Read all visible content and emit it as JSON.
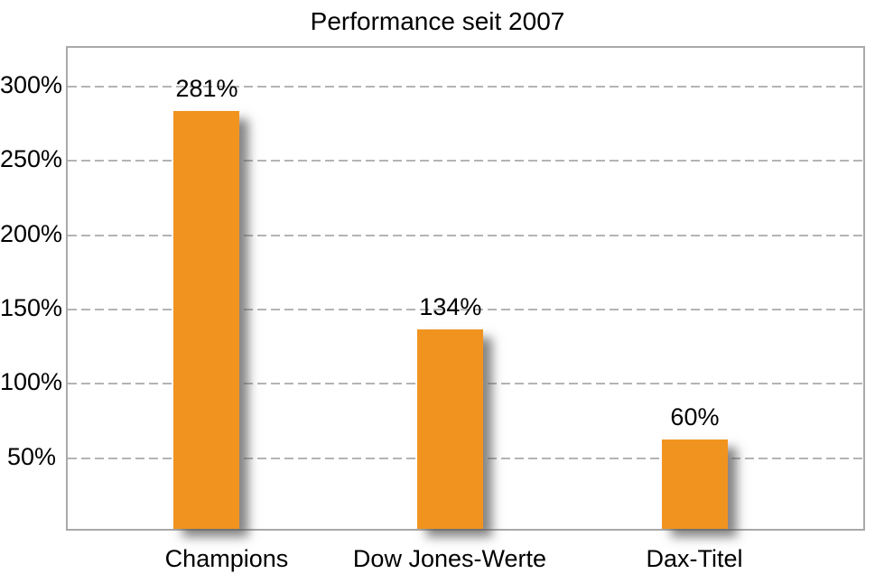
{
  "chart_data": {
    "type": "bar",
    "title": "Performance seit 2007",
    "categories": [
      "Champions",
      "Dow Jones-Werte",
      "Dax-Titel"
    ],
    "values": [
      281,
      134,
      60
    ],
    "value_labels": [
      "281%",
      "134%",
      "60%"
    ],
    "y_ticks": [
      50,
      100,
      150,
      200,
      250,
      300
    ],
    "y_tick_labels": [
      "50%",
      "100%",
      "150%",
      "200%",
      "250%",
      "300%"
    ],
    "ylim": [
      0,
      326
    ],
    "xlabel": "",
    "ylabel": "",
    "legend": "none",
    "grid": "horizontal-dashed",
    "bar_color": "#F0941F",
    "grid_color": "#B4B4B4",
    "plot_border_color": "#A9A9A9",
    "text_color": "#000000",
    "background_color": "#FFFFFF"
  }
}
